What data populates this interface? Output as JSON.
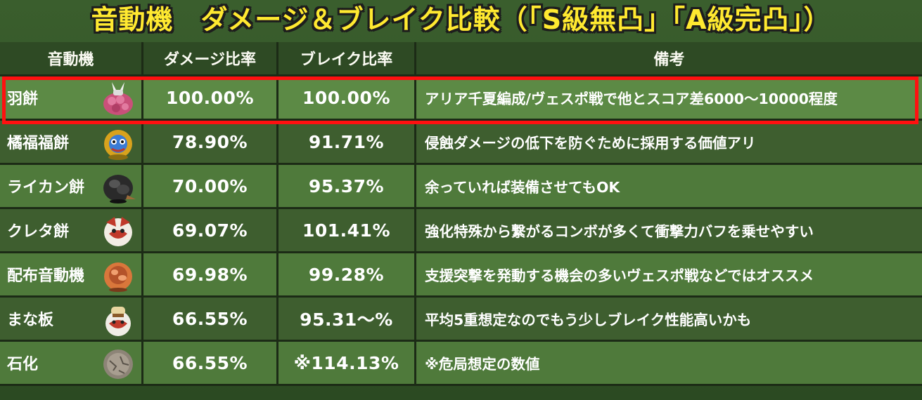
{
  "title": "音動機　ダメージ＆ブレイク比較（「S級無凸」「A級完凸」）",
  "colors": {
    "title": "#ffe930",
    "highlight_border": "#ff1010",
    "row_bg": "#4f7a3b",
    "row_bg_alt": "#3e5e2f"
  },
  "table": {
    "headers": {
      "name": "音動機",
      "damage": "ダメージ比率",
      "break": "ブレイク比率",
      "note": "備考"
    },
    "rows": [
      {
        "name": "羽餅",
        "icon": "pink-bunny-bangboo-icon",
        "damage": "100.00%",
        "break": "100.00%",
        "note": "アリア千夏編成/ヴェスポ戦で他とスコア差6000～10000程度",
        "highlighted": true
      },
      {
        "name": "橘福福餅",
        "icon": "yellow-lion-bangboo-icon",
        "damage": "78.90%",
        "break": "91.71%",
        "note": "侵蝕ダメージの低下を防ぐために採用する価値アリ"
      },
      {
        "name": "ライカン餅",
        "icon": "black-wolf-bangboo-icon",
        "damage": "70.00%",
        "break": "95.37%",
        "note": "余っていれば装備させてもOK"
      },
      {
        "name": "クレタ餅",
        "icon": "red-white-bangboo-icon",
        "damage": "69.07%",
        "break": "101.41%",
        "note": "強化特殊から繋がるコンボが多くて衝撃力バフを乗せやすい"
      },
      {
        "name": "配布音動機",
        "icon": "orange-round-bangboo-icon",
        "damage": "69.98%",
        "break": "99.28%",
        "note": "支援突撃を発動する機会の多いヴェスポ戦などではオススメ"
      },
      {
        "name": "まな板",
        "icon": "chef-bangboo-icon",
        "damage": "66.55%",
        "break": "95.31～%",
        "note": "平均5重想定なのでもう少しブレイク性能高いかも"
      },
      {
        "name": "石化",
        "icon": "stone-bangboo-icon",
        "damage": "66.55%",
        "break": "※114.13%",
        "note": "※危局想定の数値"
      }
    ]
  }
}
